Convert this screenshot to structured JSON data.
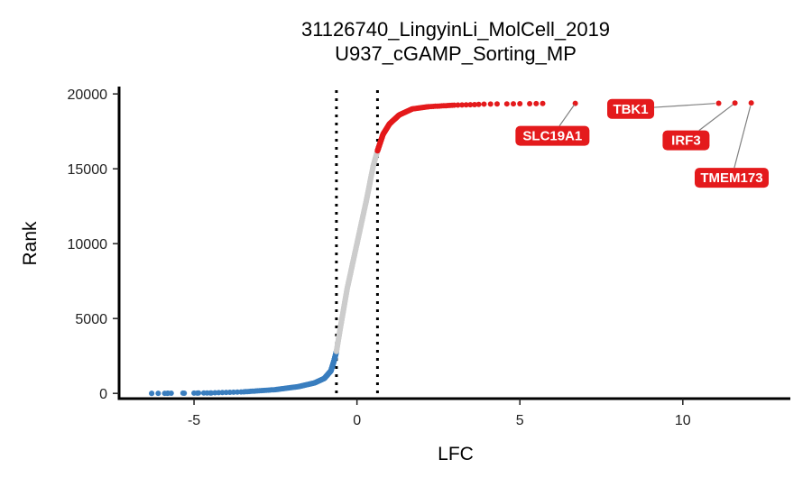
{
  "chart_data": {
    "type": "scatter",
    "title": "31126740_LingyinLi_MolCell_2019",
    "subtitle": "U937_cGAMP_Sorting_MP",
    "xlabel": "LFC",
    "ylabel": "Rank",
    "xlim": [
      -7.3,
      13.3
    ],
    "ylim": [
      -350,
      20250
    ],
    "x_ticks": [
      -5,
      0,
      5,
      10
    ],
    "x_tick_labels": [
      "-5",
      "0",
      "5",
      "10"
    ],
    "y_ticks": [
      0,
      5000,
      10000,
      15000,
      20000
    ],
    "y_tick_labels": [
      "0",
      "5000",
      "10000",
      "15000",
      "20000"
    ],
    "thresholds": [
      -0.63,
      0.63
    ],
    "grid": false,
    "colors": {
      "negative": "#3a7ebf",
      "neutral": "#cccccc",
      "positive": "#e41a1c",
      "label_bg": "#e41a1c",
      "label_text": "#ffffff",
      "leader": "#808080"
    },
    "series": [
      {
        "color": "negative",
        "curve": [
          [
            -6.3,
            0
          ],
          [
            -4.5,
            30
          ],
          [
            -3.5,
            100
          ],
          [
            -2.5,
            250
          ],
          [
            -1.8,
            450
          ],
          [
            -1.3,
            700
          ],
          [
            -1.0,
            1000
          ],
          [
            -0.8,
            1500
          ],
          [
            -0.7,
            2200
          ],
          [
            -0.63,
            2800
          ]
        ],
        "sparse_points": [
          [
            -6.3,
            2
          ],
          [
            -6.1,
            4
          ],
          [
            -5.9,
            6
          ],
          [
            -5.8,
            8
          ],
          [
            -5.7,
            10
          ],
          [
            -5.3,
            14
          ],
          [
            -5.0,
            18
          ],
          [
            -4.9,
            22
          ],
          [
            -4.7,
            26
          ],
          [
            -4.6,
            28
          ],
          [
            -4.5,
            30
          ]
        ]
      },
      {
        "color": "neutral",
        "curve": [
          [
            -0.63,
            2800
          ],
          [
            -0.5,
            4500
          ],
          [
            -0.3,
            7000
          ],
          [
            0.0,
            10000
          ],
          [
            0.3,
            13000
          ],
          [
            0.5,
            15200
          ],
          [
            0.63,
            16200
          ]
        ]
      },
      {
        "color": "positive",
        "curve": [
          [
            0.63,
            16200
          ],
          [
            0.8,
            17300
          ],
          [
            1.0,
            18000
          ],
          [
            1.3,
            18600
          ],
          [
            1.7,
            19000
          ],
          [
            2.2,
            19150
          ],
          [
            3.0,
            19250
          ],
          [
            3.8,
            19300
          ]
        ],
        "sparse_points": [
          [
            3.9,
            19320
          ],
          [
            4.1,
            19325
          ],
          [
            4.3,
            19330
          ],
          [
            4.6,
            19335
          ],
          [
            4.8,
            19340
          ],
          [
            5.0,
            19345
          ],
          [
            5.3,
            19350
          ],
          [
            5.5,
            19355
          ],
          [
            5.7,
            19360
          ],
          [
            6.7,
            19370
          ],
          [
            11.1,
            19380
          ],
          [
            11.6,
            19390
          ],
          [
            12.1,
            19400
          ]
        ]
      }
    ],
    "labels": [
      {
        "text": "SLC19A1",
        "point": [
          6.7,
          19370
        ],
        "anchor": [
          6.0,
          17200
        ]
      },
      {
        "text": "TBK1",
        "point": [
          11.1,
          19380
        ],
        "anchor": [
          8.4,
          19000
        ]
      },
      {
        "text": "IRF3",
        "point": [
          11.6,
          19390
        ],
        "anchor": [
          10.1,
          16900
        ]
      },
      {
        "text": "TMEM173",
        "point": [
          12.1,
          19400
        ],
        "anchor": [
          11.5,
          14400
        ]
      }
    ]
  }
}
